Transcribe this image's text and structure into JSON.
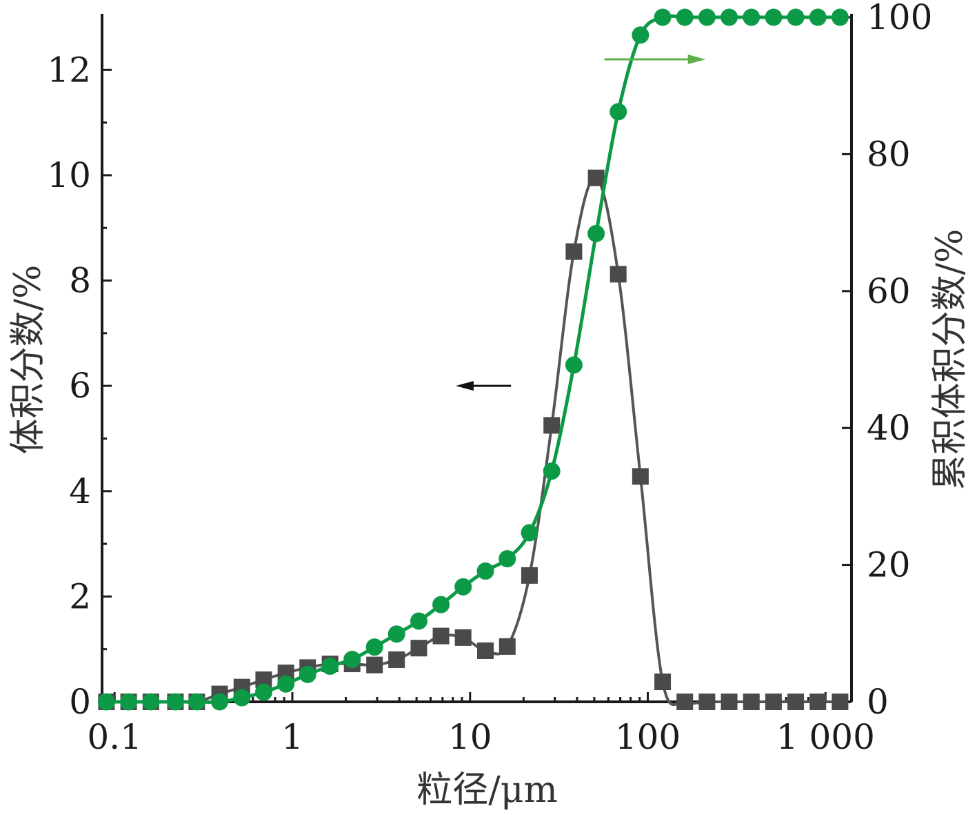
{
  "chart_data": {
    "type": "line",
    "x_scale": "log",
    "xlim": [
      0.085,
      1400
    ],
    "xlabel": "粒径/μm",
    "ylabel_left": "体积分数/%",
    "ylabel_right": "累积体积分数/%",
    "ylim_left": [
      0,
      13
    ],
    "ylim_right": [
      0,
      100
    ],
    "x_ticks": [
      0.1,
      1,
      10,
      100,
      1000
    ],
    "x_tick_labels": [
      "0.1",
      "1",
      "10",
      "100",
      "1 000"
    ],
    "y_left_ticks": [
      0,
      2,
      4,
      6,
      8,
      10,
      12
    ],
    "y_left_tick_labels": [
      "0",
      "2",
      "4",
      "6",
      "8",
      "10",
      "12"
    ],
    "y_right_ticks": [
      0,
      20,
      40,
      60,
      80,
      100
    ],
    "y_right_tick_labels": [
      "0",
      "20",
      "40",
      "60",
      "80",
      "100"
    ],
    "grid": false,
    "series": [
      {
        "axis": "left",
        "marker": "square",
        "color": "#4a4a4a",
        "line_color": "#555555",
        "x": [
          0.09,
          0.12,
          0.16,
          0.22,
          0.29,
          0.39,
          0.52,
          0.69,
          0.92,
          1.22,
          1.63,
          2.17,
          2.9,
          3.86,
          5.15,
          6.86,
          9.14,
          12.2,
          16.2,
          21.6,
          28.8,
          38.4,
          51.2,
          68.2,
          90.9,
          121.2,
          161.5,
          215.3,
          287,
          382.5,
          509.8,
          679.5,
          905.7,
          1207
        ],
        "y": [
          0,
          0,
          0,
          0,
          0,
          0.15,
          0.28,
          0.42,
          0.55,
          0.65,
          0.72,
          0.72,
          0.7,
          0.8,
          1.02,
          1.25,
          1.22,
          0.97,
          1.05,
          2.4,
          5.25,
          8.55,
          9.95,
          8.12,
          4.28,
          0.38,
          0,
          0,
          0,
          0,
          0,
          0,
          0,
          0
        ]
      },
      {
        "axis": "right",
        "marker": "circle",
        "color": "#0c9a47",
        "line_color": "#0c9a47",
        "x": [
          0.09,
          0.12,
          0.16,
          0.22,
          0.29,
          0.39,
          0.52,
          0.69,
          0.92,
          1.22,
          1.63,
          2.17,
          2.9,
          3.86,
          5.15,
          6.86,
          9.14,
          12.2,
          16.2,
          21.6,
          28.8,
          38.4,
          51.2,
          68.2,
          90.9,
          121.2,
          161.5,
          215.3,
          287,
          382.5,
          509.8,
          679.5,
          905.7,
          1207
        ],
        "y": [
          0,
          0,
          0,
          0,
          0,
          0,
          0.6,
          1.4,
          2.6,
          4,
          5.2,
          6.2,
          8,
          9.9,
          11.8,
          14.2,
          16.8,
          19.1,
          20.9,
          24.7,
          33.7,
          49.2,
          68.4,
          86.2,
          97.4,
          100,
          100,
          100,
          100,
          100,
          100,
          100,
          100,
          100
        ]
      }
    ],
    "annotations": [
      {
        "type": "arrow",
        "direction": "left",
        "color": "#111111",
        "from": [
          17,
          6
        ],
        "to": [
          8.3,
          6
        ],
        "axis": "left"
      },
      {
        "type": "arrow",
        "direction": "right",
        "color": "#5fb04a",
        "from": [
          57,
          12.2
        ],
        "to": [
          212,
          12.2
        ],
        "axis": "left"
      }
    ]
  }
}
